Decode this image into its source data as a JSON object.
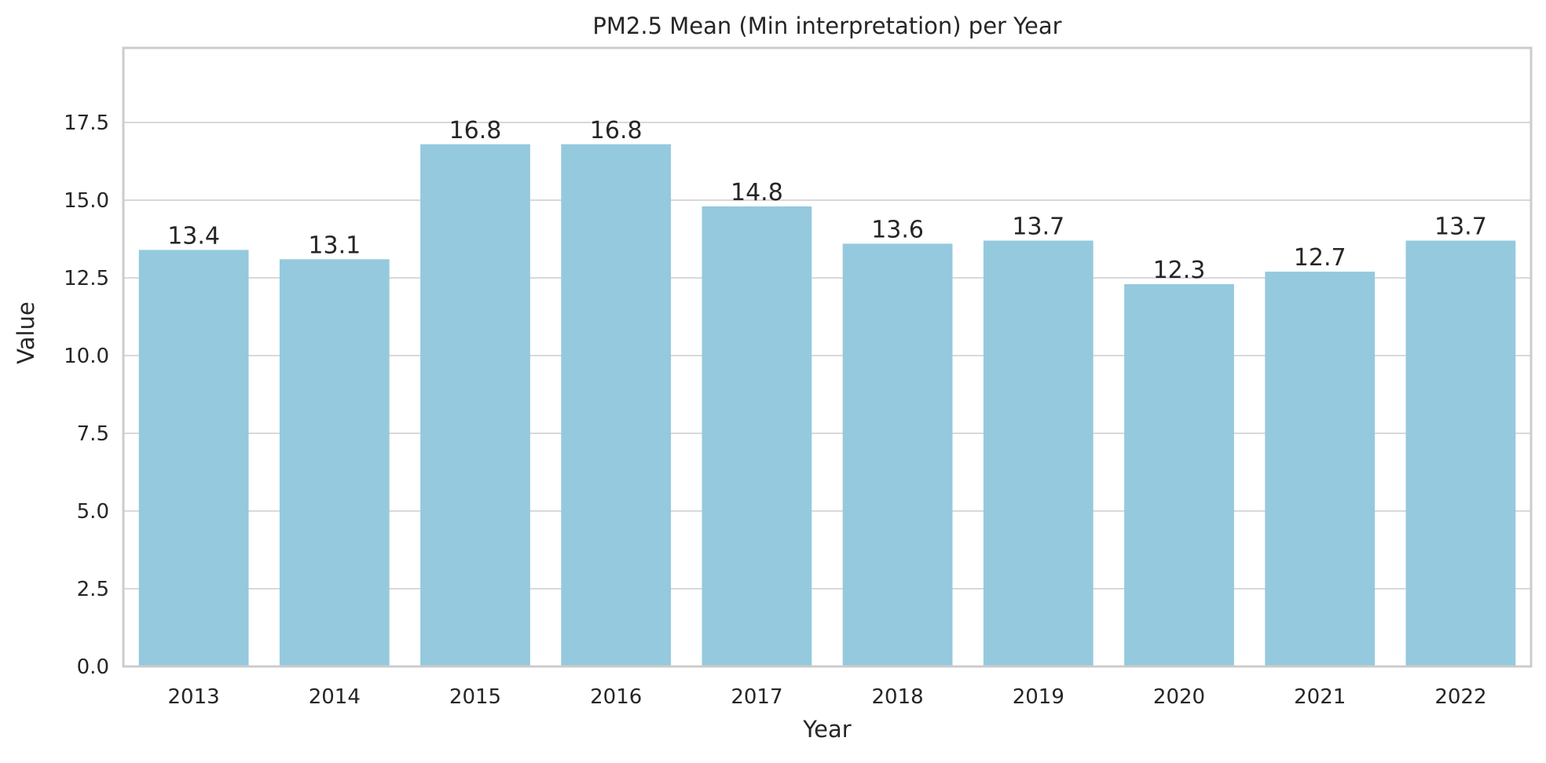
{
  "chart_data": {
    "type": "bar",
    "title": "PM2.5 Mean (Min interpretation) per Year",
    "xlabel": "Year",
    "ylabel": "Value",
    "categories": [
      "2013",
      "2014",
      "2015",
      "2016",
      "2017",
      "2018",
      "2019",
      "2020",
      "2021",
      "2022"
    ],
    "values": [
      13.4,
      13.1,
      16.8,
      16.8,
      14.8,
      13.6,
      13.7,
      12.3,
      12.7,
      13.7
    ],
    "data_labels": [
      "13.4",
      "13.1",
      "16.8",
      "16.8",
      "14.8",
      "13.6",
      "13.7",
      "12.3",
      "12.7",
      "13.7"
    ],
    "ylim": [
      0,
      19.9
    ],
    "yticks": [
      0.0,
      2.5,
      5.0,
      7.5,
      10.0,
      12.5,
      15.0,
      17.5
    ],
    "ytick_labels": [
      "0.0",
      "2.5",
      "5.0",
      "7.5",
      "10.0",
      "12.5",
      "15.0",
      "17.5"
    ],
    "grid": true,
    "bar_color": "#95c9de",
    "grid_color": "#d9d9d9",
    "spine_color": "#cccccc"
  }
}
